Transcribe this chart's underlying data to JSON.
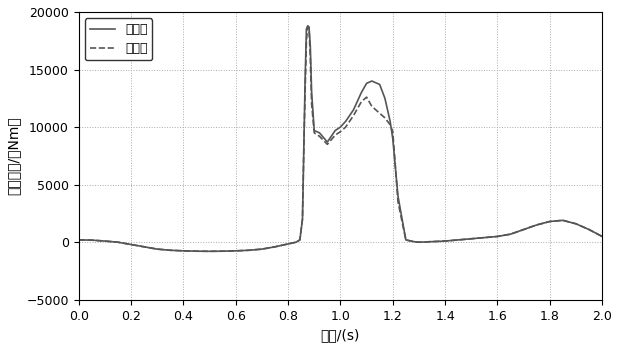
{
  "title": "",
  "xlabel": "时间/(s)",
  "ylabel": "曲柄扭矩/（Nm）",
  "xlim": [
    0,
    2
  ],
  "ylim": [
    -5000,
    20000
  ],
  "xticks": [
    0,
    0.2,
    0.4,
    0.6,
    0.8,
    1.0,
    1.2,
    1.4,
    1.6,
    1.8,
    2.0
  ],
  "yticks": [
    -5000,
    0,
    5000,
    10000,
    15000,
    20000
  ],
  "legend": [
    "优化后",
    "优化前"
  ],
  "line_solid_color": "#555555",
  "line_dashed_color": "#555555",
  "background_color": "#ffffff",
  "grid_color": "#aaaaaa",
  "figsize": [
    6.19,
    3.49
  ],
  "dpi": 100,
  "curve_after": {
    "x": [
      0,
      0.05,
      0.1,
      0.15,
      0.2,
      0.25,
      0.3,
      0.35,
      0.4,
      0.45,
      0.5,
      0.55,
      0.6,
      0.65,
      0.7,
      0.75,
      0.8,
      0.83,
      0.845,
      0.855,
      0.86,
      0.865,
      0.87,
      0.875,
      0.88,
      0.885,
      0.89,
      0.9,
      0.92,
      0.95,
      0.98,
      1.0,
      1.02,
      1.05,
      1.08,
      1.1,
      1.12,
      1.15,
      1.17,
      1.19,
      1.2,
      1.22,
      1.25,
      1.28,
      1.3,
      1.35,
      1.4,
      1.45,
      1.5,
      1.55,
      1.6,
      1.65,
      1.7,
      1.75,
      1.8,
      1.85,
      1.9,
      1.95,
      2.0
    ],
    "y": [
      200,
      180,
      100,
      0,
      -200,
      -400,
      -600,
      -700,
      -750,
      -780,
      -790,
      -780,
      -750,
      -700,
      -600,
      -400,
      -150,
      0,
      200,
      2000,
      8000,
      14000,
      18500,
      18800,
      18700,
      17000,
      13000,
      9700,
      9500,
      8700,
      9700,
      10000,
      10500,
      11500,
      13000,
      13800,
      14000,
      13700,
      12500,
      10500,
      9000,
      4000,
      200,
      50,
      0,
      50,
      100,
      200,
      300,
      400,
      500,
      700,
      1100,
      1500,
      1800,
      1900,
      1600,
      1100,
      500
    ]
  },
  "curve_before": {
    "x": [
      0,
      0.05,
      0.1,
      0.15,
      0.2,
      0.25,
      0.3,
      0.35,
      0.4,
      0.45,
      0.5,
      0.55,
      0.6,
      0.65,
      0.7,
      0.75,
      0.8,
      0.83,
      0.845,
      0.855,
      0.86,
      0.865,
      0.87,
      0.875,
      0.88,
      0.885,
      0.89,
      0.9,
      0.92,
      0.95,
      0.98,
      1.0,
      1.02,
      1.05,
      1.08,
      1.1,
      1.12,
      1.15,
      1.17,
      1.19,
      1.2,
      1.22,
      1.25,
      1.28,
      1.3,
      1.35,
      1.4,
      1.45,
      1.5,
      1.55,
      1.6,
      1.65,
      1.7,
      1.75,
      1.8,
      1.85,
      1.9,
      1.95,
      2.0
    ],
    "y": [
      200,
      180,
      100,
      0,
      -200,
      -400,
      -600,
      -700,
      -750,
      -780,
      -790,
      -780,
      -750,
      -700,
      -600,
      -400,
      -150,
      0,
      200,
      2000,
      8000,
      13000,
      17500,
      18700,
      18600,
      16000,
      12000,
      9500,
      9200,
      8500,
      9300,
      9600,
      10000,
      11000,
      12200,
      12600,
      11800,
      11200,
      10800,
      10200,
      9600,
      3500,
      200,
      50,
      0,
      50,
      100,
      200,
      300,
      400,
      500,
      700,
      1100,
      1500,
      1800,
      1900,
      1600,
      1100,
      500
    ]
  }
}
